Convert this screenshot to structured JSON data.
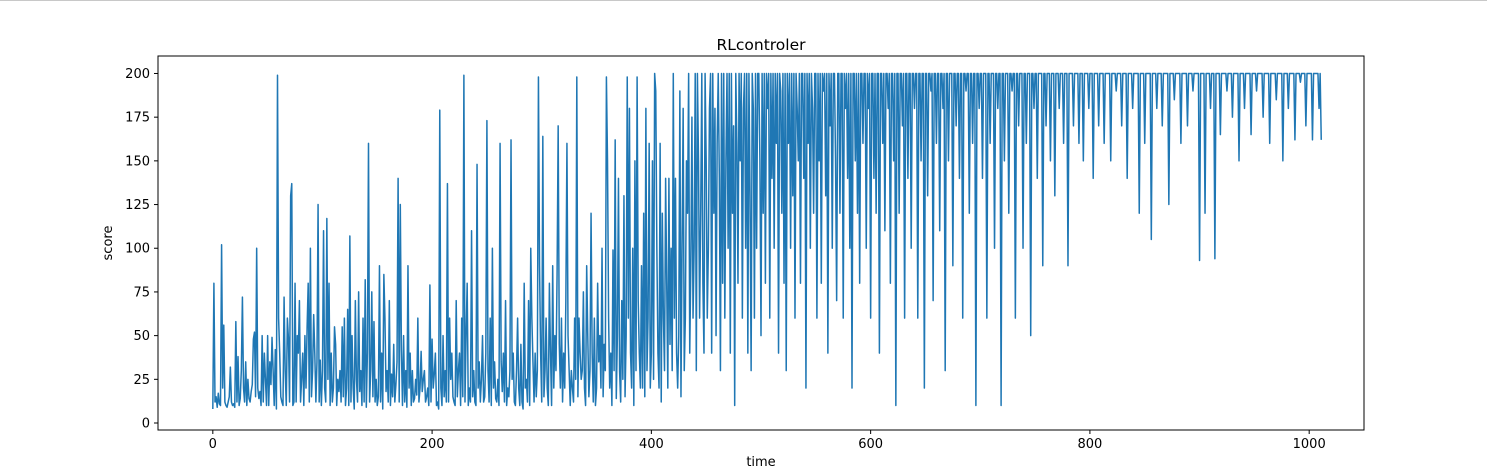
{
  "chart_data": {
    "type": "line",
    "title": "RLcontroler",
    "xlabel": "time",
    "ylabel": "score",
    "xlim": [
      -50,
      1050
    ],
    "ylim": [
      -4,
      210
    ],
    "xticks": [
      0,
      200,
      400,
      600,
      800,
      1000
    ],
    "yticks": [
      0,
      25,
      50,
      75,
      100,
      125,
      150,
      175,
      200
    ],
    "grid": false,
    "legend": "none",
    "series": [
      {
        "color": "#1f77b4",
        "x_start": 0,
        "x_step": 1,
        "values": [
          8,
          80,
          12,
          15,
          9,
          17,
          11,
          10,
          102,
          20,
          56,
          12,
          10,
          9,
          12,
          15,
          32,
          12,
          10,
          11,
          9,
          58,
          12,
          38,
          10,
          14,
          30,
          72,
          20,
          12,
          35,
          10,
          25,
          14,
          12,
          18,
          22,
          48,
          52,
          15,
          100,
          20,
          14,
          18,
          10,
          50,
          12,
          40,
          25,
          10,
          50,
          10,
          35,
          22,
          49,
          30,
          10,
          42,
          8,
          199,
          60,
          40,
          15,
          12,
          10,
          72,
          30,
          10,
          60,
          48,
          12,
          130,
          137,
          10,
          12,
          80,
          12,
          50,
          40,
          70,
          12,
          25,
          40,
          10,
          50,
          20,
          55,
          80,
          12,
          100,
          15,
          30,
          62,
          40,
          12,
          35,
          125,
          12,
          36,
          10,
          30,
          110,
          20,
          12,
          117,
          25,
          80,
          10,
          40,
          12,
          20,
          55,
          45,
          10,
          25,
          18,
          30,
          12,
          55,
          15,
          60,
          10,
          20,
          65,
          10,
          107,
          12,
          50,
          20,
          8,
          70,
          25,
          12,
          75,
          18,
          30,
          10,
          60,
          12,
          82,
          9,
          40,
          160,
          12,
          30,
          75,
          15,
          58,
          12,
          25,
          10,
          15,
          90,
          12,
          40,
          8,
          85,
          60,
          18,
          30,
          12,
          70,
          10,
          28,
          15,
          45,
          12,
          22,
          35,
          140,
          12,
          125,
          42,
          10,
          50,
          12,
          30,
          9,
          90,
          20,
          40,
          10,
          30,
          12,
          14,
          25,
          16,
          60,
          12,
          20,
          41,
          18,
          25,
          30,
          12,
          15,
          20,
          10,
          79,
          12,
          48,
          20,
          28,
          40,
          10,
          12,
          8,
          179,
          20,
          10,
          50,
          15,
          30,
          12,
          137,
          12,
          60,
          25,
          40,
          15,
          12,
          10,
          70,
          15,
          30,
          40,
          10,
          60,
          15,
          199,
          12,
          50,
          80,
          10,
          20,
          12,
          110,
          15,
          30,
          12,
          10,
          148,
          20,
          35,
          12,
          25,
          50,
          12,
          15,
          40,
          173,
          30,
          12,
          60,
          10,
          100,
          20,
          35,
          14,
          12,
          25,
          10,
          160,
          35,
          18,
          40,
          12,
          70,
          10,
          20,
          15,
          30,
          162,
          25,
          40,
          12,
          10,
          30,
          60,
          20,
          10,
          45,
          12,
          8,
          80,
          20,
          25,
          12,
          70,
          10,
          100,
          60,
          35,
          12,
          40,
          15,
          30,
          198,
          90,
          40,
          12,
          164,
          15,
          30,
          60,
          20,
          10,
          80,
          40,
          10,
          90,
          20,
          50,
          30,
          85,
          170,
          45,
          20,
          60,
          12,
          40,
          20,
          70,
          160,
          50,
          30,
          10,
          30,
          20,
          12,
          60,
          25,
          198,
          15,
          60,
          40,
          25,
          30,
          75,
          20,
          10,
          90,
          50,
          15,
          30,
          120,
          40,
          12,
          60,
          10,
          20,
          80,
          35,
          50,
          20,
          100,
          15,
          45,
          30,
          198,
          150,
          60,
          20,
          40,
          10,
          99,
          30,
          162,
          14,
          50,
          140,
          30,
          12,
          70,
          25,
          130,
          15,
          50,
          198,
          60,
          180,
          40,
          20,
          100,
          10,
          150,
          30,
          198,
          70,
          40,
          20,
          90,
          20,
          120,
          15,
          180,
          30,
          60,
          160,
          20,
          40,
          150,
          25,
          200,
          190,
          100,
          40,
          20,
          160,
          12,
          120,
          60,
          30,
          140,
          80,
          20,
          140,
          45,
          100,
          30,
          200,
          60,
          140,
          40,
          20,
          50,
          190,
          15,
          100,
          180,
          30,
          60,
          150,
          120,
          200,
          40,
          90,
          175,
          60,
          100,
          200,
          30,
          200,
          150,
          60,
          120,
          200,
          80,
          40,
          200,
          150,
          60,
          100,
          180,
          200,
          40,
          200,
          120,
          180,
          50,
          160,
          200,
          140,
          30,
          200,
          80,
          200,
          60,
          150,
          200,
          100,
          200,
          40,
          200,
          120,
          170,
          10,
          200,
          160,
          80,
          200,
          150,
          200,
          60,
          180,
          200,
          100,
          200,
          40,
          200,
          130,
          30,
          200,
          180,
          60,
          200,
          100,
          200,
          200,
          150,
          50,
          200,
          120,
          200,
          80,
          200,
          180,
          200,
          60,
          200,
          140,
          200,
          100,
          200,
          160,
          200,
          40,
          200,
          190,
          120,
          200,
          80,
          200,
          30,
          200,
          160,
          200,
          100,
          200,
          130,
          200,
          60,
          200,
          180,
          150,
          200,
          80,
          200,
          200,
          140,
          200,
          20,
          200,
          160,
          200,
          100,
          200,
          180,
          120,
          200,
          200,
          60,
          200,
          150,
          200,
          80,
          200,
          190,
          200,
          130,
          200,
          40,
          200,
          170,
          200,
          100,
          200,
          200,
          150,
          70,
          200,
          200,
          120,
          200,
          200,
          60,
          200,
          180,
          200,
          140,
          200,
          100,
          200,
          20,
          200,
          200,
          150,
          200,
          120,
          200,
          80,
          200,
          200,
          160,
          200,
          200,
          100,
          200,
          180,
          200,
          60,
          200,
          200,
          140,
          200,
          120,
          200,
          200,
          40,
          200,
          200,
          160,
          200,
          110,
          200,
          200,
          180,
          200,
          80,
          200,
          200,
          150,
          200,
          10,
          200,
          200,
          120,
          200,
          200,
          170,
          200,
          60,
          200,
          200,
          140,
          200,
          200,
          100,
          200,
          200,
          180,
          200,
          200,
          60,
          200,
          200,
          150,
          200,
          200,
          20,
          200,
          200,
          130,
          200,
          200,
          190,
          200,
          70,
          200,
          200,
          160,
          200,
          200,
          110,
          200,
          200,
          180,
          200,
          30,
          200,
          200,
          150,
          200,
          200,
          200,
          90,
          200,
          200,
          170,
          200,
          200,
          140,
          200,
          200,
          60,
          200,
          200,
          190,
          200,
          200,
          120,
          200,
          200,
          160,
          200,
          200,
          10,
          200,
          200,
          180,
          200,
          200,
          140,
          200,
          200,
          200,
          60,
          200,
          200,
          160,
          200,
          200,
          200,
          100,
          200,
          200,
          180,
          200,
          200,
          10,
          200,
          200,
          150,
          200,
          200,
          200,
          120,
          200,
          200,
          190,
          200,
          200,
          60,
          200,
          200,
          170,
          200,
          200,
          200,
          100,
          200,
          200,
          160,
          200,
          200,
          200,
          50,
          200,
          200,
          180,
          200,
          200,
          140,
          200,
          200,
          200,
          200,
          90,
          200,
          200,
          170,
          200,
          200,
          200,
          150,
          200,
          200,
          200,
          130,
          200,
          200,
          200,
          180,
          200,
          200,
          200,
          160,
          200,
          200,
          200,
          90,
          200,
          200,
          200,
          200,
          170,
          200,
          200,
          200,
          200,
          160,
          200,
          200,
          200,
          150,
          200,
          200,
          200,
          200,
          180,
          200,
          200,
          200,
          140,
          200,
          200,
          200,
          200,
          170,
          200,
          200,
          200,
          200,
          160,
          200,
          200,
          200,
          200,
          200,
          150,
          200,
          200,
          200,
          200,
          190,
          200,
          200,
          200,
          200,
          170,
          200,
          200,
          200,
          200,
          140,
          200,
          200,
          200,
          200,
          180,
          200,
          200,
          200,
          200,
          200,
          120,
          200,
          200,
          200,
          200,
          160,
          200,
          200,
          200,
          200,
          200,
          105,
          200,
          200,
          200,
          200,
          180,
          200,
          200,
          200,
          200,
          170,
          200,
          200,
          200,
          200,
          200,
          125,
          200,
          200,
          200,
          200,
          185,
          200,
          200,
          200,
          200,
          200,
          160,
          200,
          200,
          200,
          200,
          200,
          170,
          200,
          200,
          200,
          200,
          190,
          200,
          200,
          200,
          200,
          200,
          93,
          200,
          200,
          200,
          200,
          120,
          200,
          200,
          200,
          200,
          180,
          200,
          200,
          200,
          94,
          200,
          200,
          200,
          200,
          165,
          200,
          200,
          200,
          200,
          200,
          190,
          200,
          200,
          200,
          200,
          175,
          200,
          200,
          200,
          200,
          200,
          150,
          200,
          200,
          200,
          200,
          180,
          200,
          200,
          200,
          200,
          200,
          165,
          200,
          200,
          200,
          200,
          190,
          200,
          200,
          200,
          200,
          200,
          175,
          200,
          200,
          200,
          200,
          200,
          160,
          200,
          200,
          200,
          200,
          200,
          185,
          200,
          200,
          200,
          200,
          200,
          150,
          200,
          200,
          200,
          200,
          180,
          200,
          200,
          200,
          200,
          200,
          162,
          200,
          200,
          200,
          200,
          195,
          200,
          200,
          200,
          200,
          170,
          200,
          200,
          200,
          200,
          200,
          162,
          200,
          200,
          200,
          200,
          200,
          180,
          200,
          162
        ]
      }
    ]
  }
}
